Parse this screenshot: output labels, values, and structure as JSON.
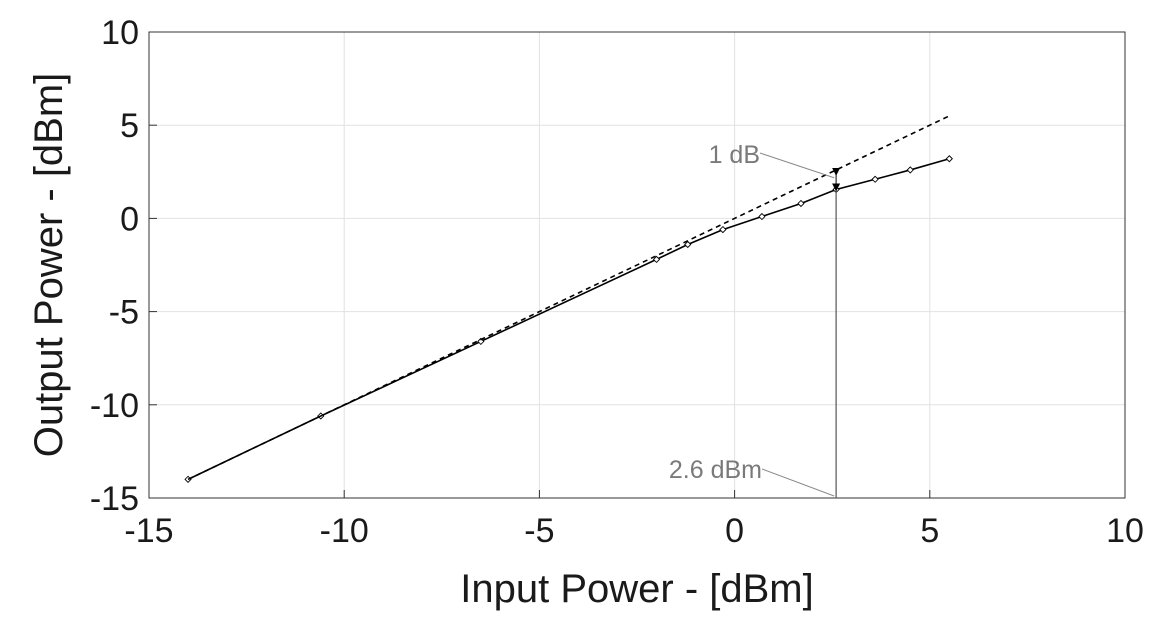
{
  "chart_data": {
    "type": "line",
    "title": "",
    "xlabel": "Input Power - [dBm]",
    "ylabel": "Output Power - [dBm]",
    "xlim": [
      -15,
      10
    ],
    "ylim": [
      -15,
      10
    ],
    "xticks": [
      -15,
      -10,
      -5,
      0,
      5,
      10
    ],
    "yticks": [
      -15,
      -10,
      -5,
      0,
      5,
      10
    ],
    "xtick_labels": [
      "-15",
      "-10",
      "-5",
      "0",
      "5",
      "10"
    ],
    "ytick_labels": [
      "-15",
      "-10",
      "-5",
      "0",
      "5",
      "10"
    ],
    "grid": true,
    "legend": "none",
    "series": [
      {
        "style": "solid-with-diamond-markers",
        "color": "#000000",
        "x": [
          -14.0,
          -10.6,
          -6.5,
          -2.0,
          -1.2,
          -0.3,
          0.7,
          1.7,
          2.6,
          3.6,
          4.5,
          5.5
        ],
        "y": [
          -14.0,
          -10.6,
          -6.6,
          -2.2,
          -1.4,
          -0.6,
          0.1,
          0.8,
          1.55,
          2.1,
          2.6,
          3.2
        ]
      },
      {
        "style": "dashed",
        "color": "#000000",
        "x": [
          -14.0,
          5.5
        ],
        "y": [
          -14.0,
          5.5
        ]
      }
    ],
    "annotations": [
      {
        "text": "1 dB",
        "x": 2.6,
        "y_from": 1.55,
        "y_to": 2.6
      },
      {
        "text": "2.6 dBm",
        "x": 2.6
      }
    ]
  }
}
